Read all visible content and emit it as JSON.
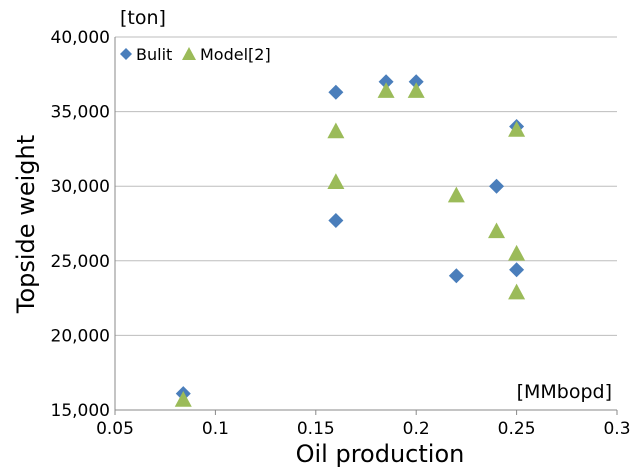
{
  "chart_data": {
    "type": "scatter",
    "title": "",
    "xlabel": "Oil production",
    "ylabel": "Topside weight",
    "x_unit": "[MMbopd]",
    "y_unit": "[ton]",
    "xlim": [
      0.05,
      0.3
    ],
    "ylim": [
      15000,
      40000
    ],
    "x_ticks": [
      0.05,
      0.1,
      0.15,
      0.2,
      0.25,
      0.3
    ],
    "x_tick_labels": [
      "0.05",
      "0.1",
      "0.15",
      "0.2",
      "0.25",
      "0.3"
    ],
    "y_ticks": [
      15000,
      20000,
      25000,
      30000,
      35000,
      40000
    ],
    "y_tick_labels": [
      "15,000",
      "20,000",
      "25,000",
      "30,000",
      "35,000",
      "40,000"
    ],
    "grid": "horizontal",
    "legend_position": "top-left",
    "series": [
      {
        "name": "Bulit",
        "marker": "diamond",
        "color": "#4a7ebb",
        "points": [
          {
            "x": 0.084,
            "y": 16100
          },
          {
            "x": 0.16,
            "y": 36300
          },
          {
            "x": 0.16,
            "y": 27700
          },
          {
            "x": 0.185,
            "y": 37000
          },
          {
            "x": 0.2,
            "y": 37000
          },
          {
            "x": 0.22,
            "y": 24000
          },
          {
            "x": 0.24,
            "y": 30000
          },
          {
            "x": 0.25,
            "y": 34000
          },
          {
            "x": 0.25,
            "y": 24400
          }
        ]
      },
      {
        "name": "Model[2]",
        "marker": "triangle",
        "color": "#9bbb59",
        "points": [
          {
            "x": 0.084,
            "y": 15700
          },
          {
            "x": 0.16,
            "y": 33700
          },
          {
            "x": 0.16,
            "y": 30300
          },
          {
            "x": 0.185,
            "y": 36400
          },
          {
            "x": 0.2,
            "y": 36400
          },
          {
            "x": 0.22,
            "y": 29400
          },
          {
            "x": 0.24,
            "y": 27000
          },
          {
            "x": 0.25,
            "y": 33800
          },
          {
            "x": 0.25,
            "y": 25500
          },
          {
            "x": 0.25,
            "y": 22900
          }
        ]
      }
    ]
  }
}
